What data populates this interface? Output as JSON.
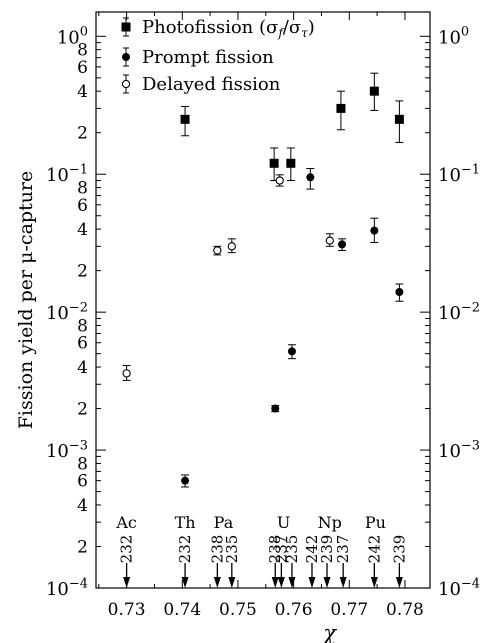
{
  "chart_data": {
    "type": "scatter",
    "xlabel": "χ",
    "ylabel": "Fission yield per μ-capture",
    "xlim": [
      0.7245,
      0.7845
    ],
    "ylim": [
      0.0001,
      1.5
    ],
    "yscale": "log",
    "x_ticks": [
      {
        "value": 0.73,
        "label": "0.73"
      },
      {
        "value": 0.74,
        "label": "0.74"
      },
      {
        "value": 0.75,
        "label": "0.75"
      },
      {
        "value": 0.76,
        "label": "0.76"
      },
      {
        "value": 0.77,
        "label": "0.77"
      },
      {
        "value": 0.78,
        "label": "0.78"
      }
    ],
    "y_major_ticks": [
      {
        "value": 0.0001,
        "base": "10",
        "exp": "−4"
      },
      {
        "value": 0.001,
        "base": "10",
        "exp": "−3"
      },
      {
        "value": 0.01,
        "base": "10",
        "exp": "−2"
      },
      {
        "value": 0.1,
        "base": "10",
        "exp": "−1"
      },
      {
        "value": 1,
        "base": "10",
        "exp": "0"
      }
    ],
    "y_minor_labels": [
      "2",
      "4",
      "6",
      "8"
    ],
    "legend": {
      "position": "top-left",
      "entries": [
        {
          "marker": "square",
          "label": "Photofission (σ",
          "sub1": "f",
          "mid": "/σ",
          "sub2": "τ",
          "end": ")"
        },
        {
          "marker": "filled-circle",
          "label": "Prompt fission"
        },
        {
          "marker": "open-circle",
          "label": "Delayed fission"
        }
      ]
    },
    "series": [
      {
        "name": "Photofission",
        "marker": "square",
        "points": [
          {
            "x": 0.7405,
            "y": 0.25,
            "lo": 0.19,
            "hi": 0.31
          },
          {
            "x": 0.7565,
            "y": 0.12,
            "lo": 0.09,
            "hi": 0.155
          },
          {
            "x": 0.7595,
            "y": 0.12,
            "lo": 0.09,
            "hi": 0.155
          },
          {
            "x": 0.7685,
            "y": 0.3,
            "lo": 0.21,
            "hi": 0.4
          },
          {
            "x": 0.7745,
            "y": 0.4,
            "lo": 0.29,
            "hi": 0.54
          },
          {
            "x": 0.779,
            "y": 0.25,
            "lo": 0.17,
            "hi": 0.34
          }
        ]
      },
      {
        "name": "Prompt fission",
        "marker": "filled-circle",
        "points": [
          {
            "x": 0.7405,
            "y": 0.0006,
            "lo": 0.00054,
            "hi": 0.00066
          },
          {
            "x": 0.7567,
            "y": 0.002,
            "lo": 0.0019,
            "hi": 0.0021
          },
          {
            "x": 0.7597,
            "y": 0.0052,
            "lo": 0.0046,
            "hi": 0.0058
          },
          {
            "x": 0.763,
            "y": 0.095,
            "lo": 0.078,
            "hi": 0.11
          },
          {
            "x": 0.7687,
            "y": 0.031,
            "lo": 0.028,
            "hi": 0.034
          },
          {
            "x": 0.7745,
            "y": 0.039,
            "lo": 0.032,
            "hi": 0.048
          },
          {
            "x": 0.779,
            "y": 0.014,
            "lo": 0.012,
            "hi": 0.016
          }
        ]
      },
      {
        "name": "Delayed fission",
        "marker": "open-circle",
        "points": [
          {
            "x": 0.73,
            "y": 0.0036,
            "lo": 0.0032,
            "hi": 0.0041
          },
          {
            "x": 0.7463,
            "y": 0.028,
            "lo": 0.026,
            "hi": 0.03
          },
          {
            "x": 0.7489,
            "y": 0.03,
            "lo": 0.027,
            "hi": 0.034
          },
          {
            "x": 0.7575,
            "y": 0.09,
            "lo": 0.082,
            "hi": 0.099
          },
          {
            "x": 0.7665,
            "y": 0.033,
            "lo": 0.03,
            "hi": 0.037
          }
        ]
      }
    ],
    "element_labels": [
      {
        "x": 0.73,
        "label": "Ac"
      },
      {
        "x": 0.7405,
        "label": "Th"
      },
      {
        "x": 0.7474,
        "label": "Pa"
      },
      {
        "x": 0.7582,
        "label": "U"
      },
      {
        "x": 0.7665,
        "label": "Np"
      },
      {
        "x": 0.7747,
        "label": "Pu"
      }
    ],
    "isotope_markers": [
      {
        "x": 0.73,
        "label": "232"
      },
      {
        "x": 0.7405,
        "label": "232"
      },
      {
        "x": 0.7463,
        "label": "238"
      },
      {
        "x": 0.7489,
        "label": "235"
      },
      {
        "x": 0.7567,
        "label": "238"
      },
      {
        "x": 0.7578,
        "label": "237"
      },
      {
        "x": 0.7597,
        "label": "235"
      },
      {
        "x": 0.7633,
        "label": "242"
      },
      {
        "x": 0.766,
        "label": "239"
      },
      {
        "x": 0.7689,
        "label": "237"
      },
      {
        "x": 0.7745,
        "label": "242"
      },
      {
        "x": 0.779,
        "label": "239"
      }
    ]
  }
}
